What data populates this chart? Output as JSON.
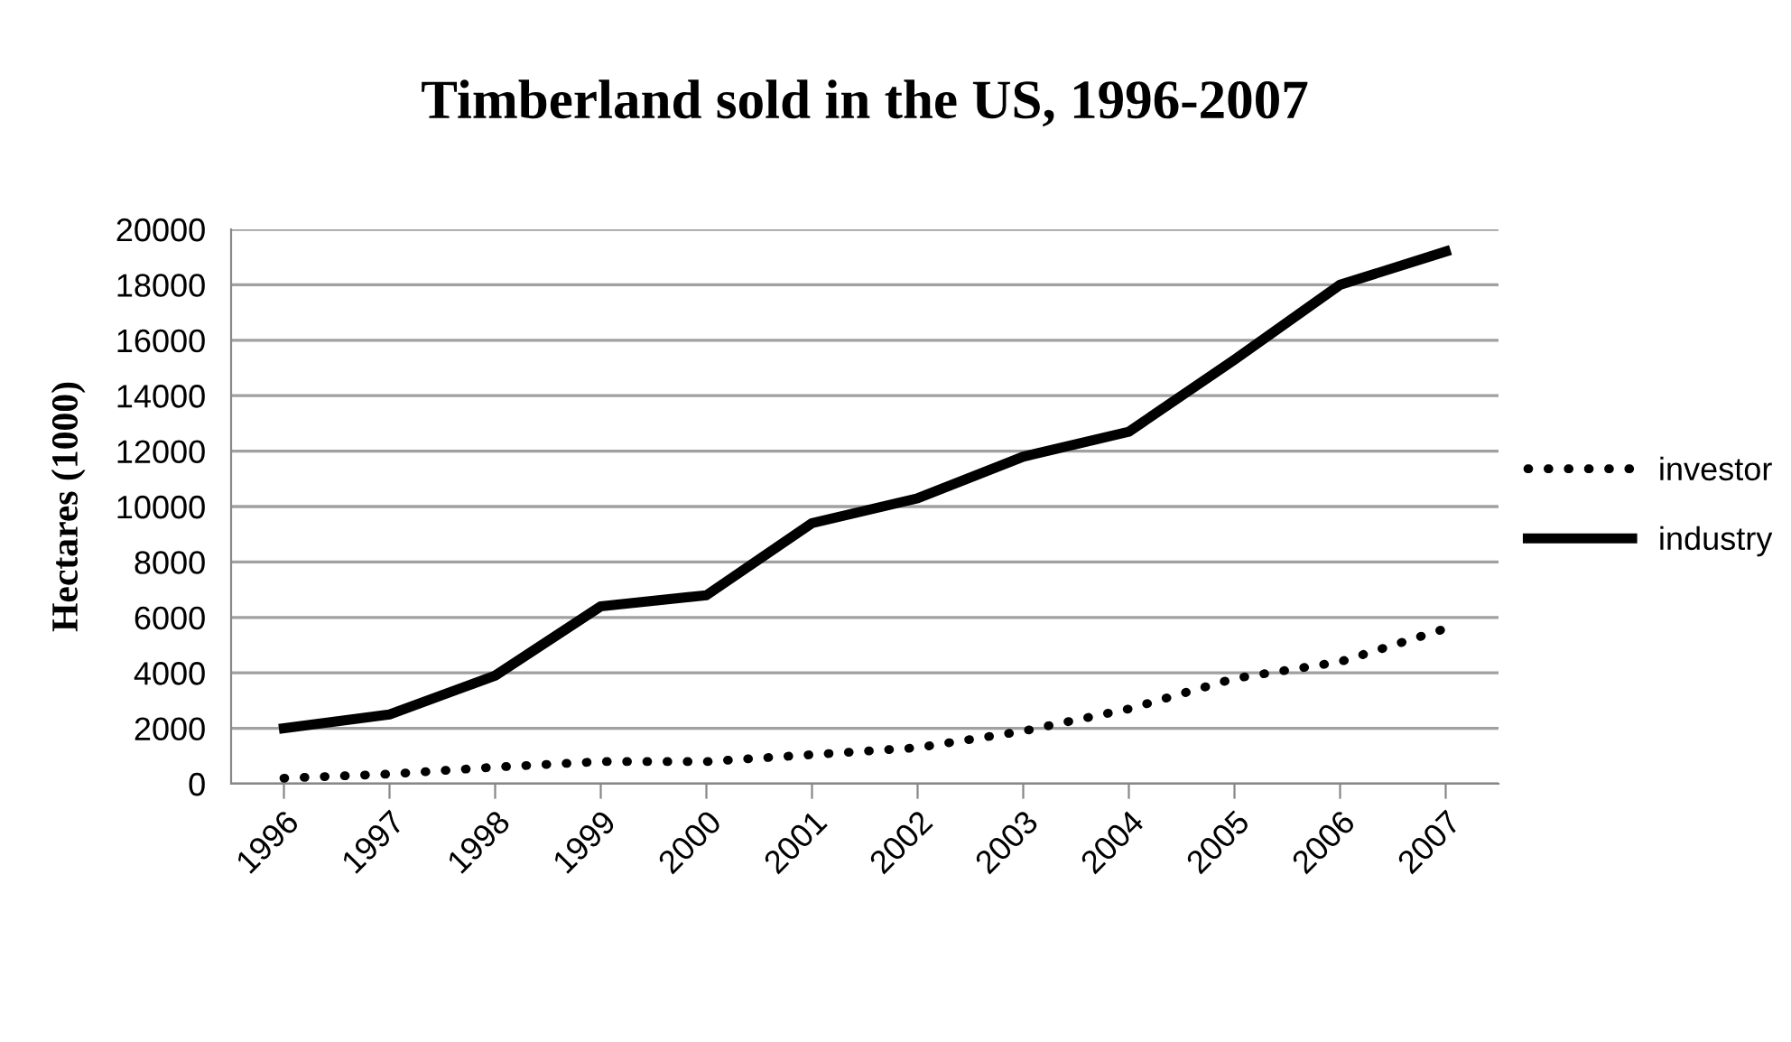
{
  "chart_data": {
    "type": "line",
    "title": "Timberland sold in the US, 1996-2007",
    "ylabel": "Hectares (1000)",
    "categories": [
      "1996",
      "1997",
      "1998",
      "1999",
      "2000",
      "2001",
      "2002",
      "2003",
      "2004",
      "2005",
      "2006",
      "2007"
    ],
    "series": [
      {
        "name": "investor",
        "color": "#000000",
        "line_style": "dotted",
        "values": [
          200,
          350,
          600,
          800,
          800,
          1050,
          1300,
          1900,
          2700,
          3800,
          4400,
          5600
        ]
      },
      {
        "name": "industry",
        "color": "#000000",
        "line_style": "solid",
        "values": [
          2000,
          2500,
          3900,
          6400,
          6800,
          9400,
          10300,
          11800,
          12700,
          15300,
          18000,
          19200
        ]
      }
    ],
    "ylim": [
      0,
      20000
    ],
    "yticks": [
      0,
      2000,
      4000,
      6000,
      8000,
      10000,
      12000,
      14000,
      16000,
      18000,
      20000
    ],
    "grid": "y",
    "legend": "right",
    "marker": "none"
  }
}
